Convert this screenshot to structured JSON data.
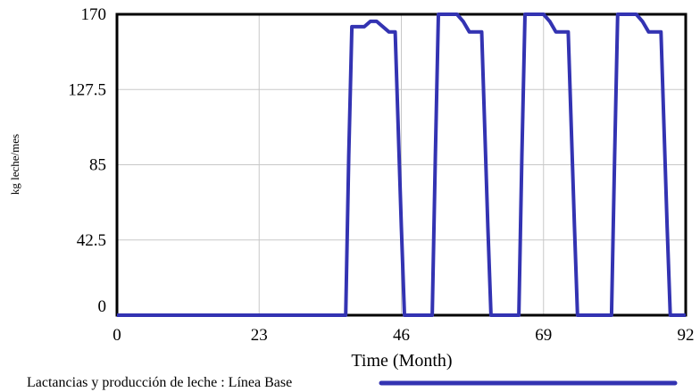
{
  "chart_data": {
    "type": "line",
    "xlabel": "Time (Month)",
    "ylabel": "kg leche/mes",
    "xlim": [
      0,
      92
    ],
    "ylim": [
      0,
      170
    ],
    "x_ticks": [
      "0",
      "23",
      "46",
      "69",
      "92"
    ],
    "y_ticks": [
      "0",
      "42.5",
      "85",
      "127.5",
      "170"
    ],
    "grid": true,
    "legend_position": "bottom",
    "series": [
      {
        "name": "Lactancias y producción de leche : Línea Base",
        "color": "#3333b2",
        "x": [
          0,
          37,
          37.5,
          38,
          40,
          41,
          42,
          44,
          45,
          46,
          46.5,
          51,
          51.5,
          52,
          55,
          56,
          57,
          59,
          60,
          60.5,
          61,
          65,
          65.5,
          66,
          69,
          70,
          71,
          73,
          74,
          74.5,
          75,
          80,
          80.5,
          81,
          84,
          85,
          86,
          88,
          89,
          89.5,
          90,
          92
        ],
        "values": [
          0,
          0,
          90,
          163,
          163,
          166,
          166,
          160,
          160,
          50,
          0,
          0,
          90,
          170,
          170,
          166,
          160,
          160,
          50,
          0,
          0,
          0,
          90,
          170,
          170,
          166,
          160,
          160,
          50,
          0,
          0,
          0,
          90,
          170,
          170,
          166,
          160,
          160,
          50,
          0,
          0,
          0
        ]
      }
    ]
  }
}
